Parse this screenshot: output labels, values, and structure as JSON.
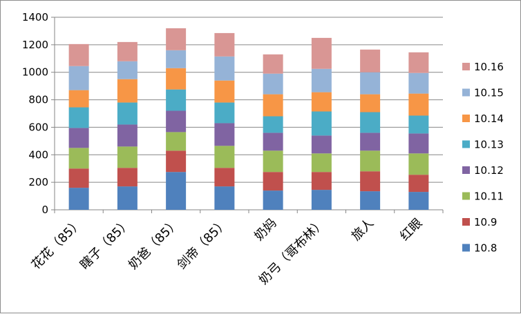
{
  "chart_data": {
    "type": "bar",
    "stacked": true,
    "categories": [
      "花花（85）",
      "瞎子（85）",
      "奶爸（85）",
      "剑帝（85）",
      "奶妈",
      "奶弓（哥布林）",
      "旅人",
      "红眼"
    ],
    "series": [
      {
        "name": "10.8",
        "color": "#4F81BD",
        "values": [
          160,
          170,
          275,
          170,
          140,
          145,
          135,
          130
        ]
      },
      {
        "name": "10.9",
        "color": "#C0504D",
        "values": [
          140,
          135,
          155,
          135,
          135,
          130,
          145,
          125
        ]
      },
      {
        "name": "10.11",
        "color": "#9BBB59",
        "values": [
          150,
          155,
          135,
          160,
          155,
          135,
          150,
          155
        ]
      },
      {
        "name": "10.12",
        "color": "#8064A2",
        "values": [
          145,
          160,
          155,
          165,
          130,
          130,
          130,
          145
        ]
      },
      {
        "name": "10.13",
        "color": "#4BACC6",
        "values": [
          150,
          160,
          155,
          150,
          120,
          175,
          150,
          130
        ]
      },
      {
        "name": "10.14",
        "color": "#F79646",
        "values": [
          125,
          170,
          155,
          160,
          160,
          140,
          130,
          160
        ]
      },
      {
        "name": "10.15",
        "color": "#95B3D7",
        "values": [
          175,
          130,
          130,
          175,
          150,
          170,
          160,
          150
        ]
      },
      {
        "name": "10.16",
        "color": "#D99694",
        "values": [
          160,
          140,
          160,
          170,
          140,
          225,
          165,
          150
        ]
      }
    ],
    "y_ticks": [
      "0",
      "200",
      "400",
      "600",
      "800",
      "1000",
      "1200",
      "1400"
    ],
    "ylim": [
      0,
      1400
    ],
    "grid": true,
    "legend_position": "right"
  }
}
